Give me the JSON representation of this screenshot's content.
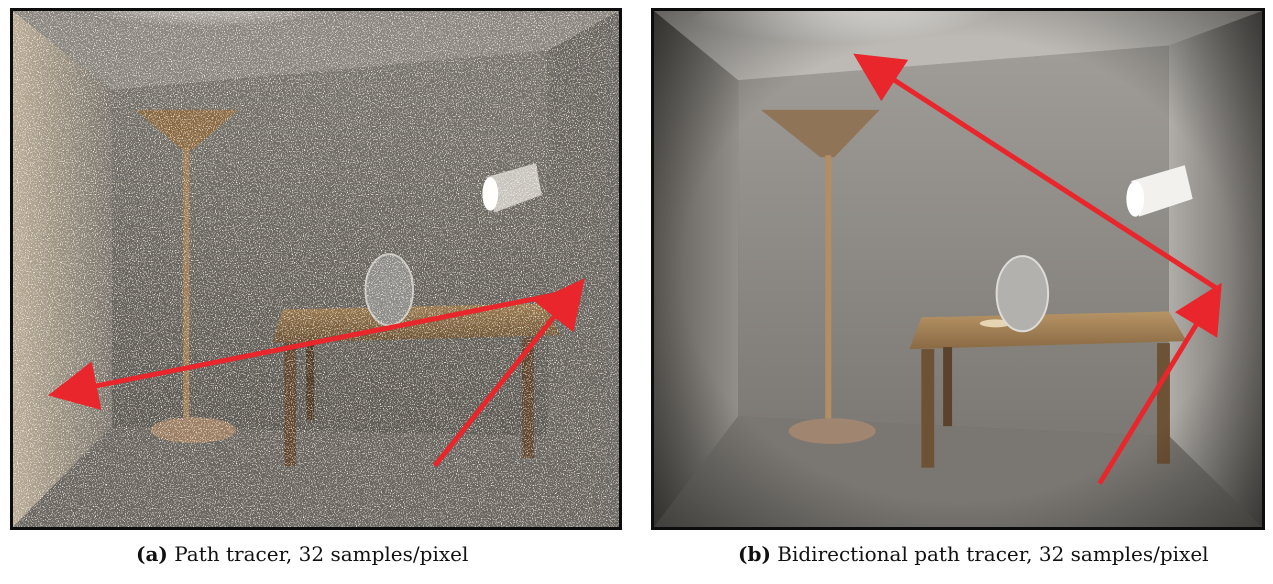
{
  "figure": {
    "panels": [
      {
        "id": "a",
        "label": "(a)",
        "caption": "Path tracer, 32 samples/pixel",
        "noise": "high"
      },
      {
        "id": "b",
        "label": "(b)",
        "caption": "Bidirectional path tracer, 32 samples/pixel",
        "noise": "low"
      }
    ],
    "colors": {
      "arrow": "#e8262b",
      "frame": "#0d0d0d",
      "wall": "#8a8782",
      "floor": "#6e6b66",
      "wood": "#8a6a44"
    },
    "objects": [
      "ceiling-light",
      "floor-lamp",
      "spotlight",
      "table",
      "glass-egg"
    ]
  }
}
